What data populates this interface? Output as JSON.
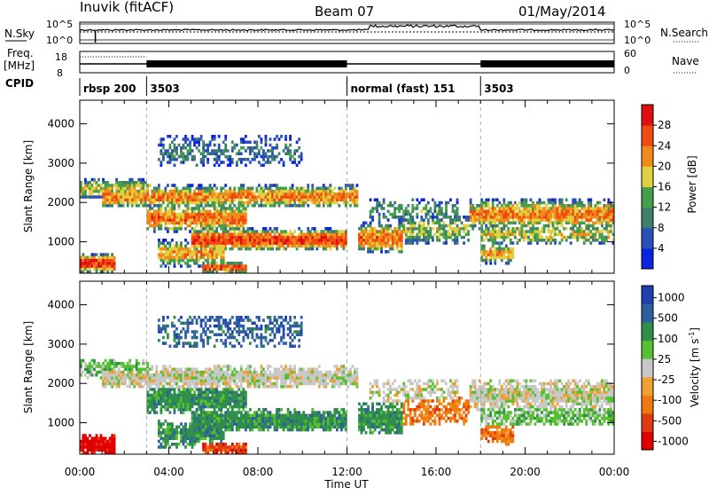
{
  "header": {
    "station": "Inuvik (fitACF)",
    "beam": "Beam 07",
    "date": "01/May/2014"
  },
  "top_panels": {
    "nsky_label": "N.Sky",
    "nsky_ticks": [
      "10^5",
      "10^0"
    ],
    "nsearch_label": "N.Search",
    "nsearch_ticks": [
      "10^5",
      "10^0"
    ],
    "freq_label_1": "Freq.",
    "freq_label_2": "[MHz]",
    "freq_ticks": [
      "18",
      "8"
    ],
    "nave_label": "Nave",
    "nave_ticks": [
      "60",
      "0"
    ],
    "cpid_label": "CPID",
    "cpid_segments": [
      {
        "label": "rbsp 200",
        "start_hr": 0.0,
        "end_hr": 3.0
      },
      {
        "label": "3503",
        "start_hr": 3.0,
        "end_hr": 12.0
      },
      {
        "label": "normal (fast) 151",
        "start_hr": 12.0,
        "end_hr": 18.0
      },
      {
        "label": "3503",
        "start_hr": 18.0,
        "end_hr": 24.0
      }
    ]
  },
  "chart_data": [
    {
      "type": "heatmap",
      "panel": "power",
      "ylabel": "Slant Range [km]",
      "yticks": [
        1000,
        2000,
        3000,
        4000
      ],
      "ylim": [
        200,
        4600
      ],
      "xlim": [
        0,
        24
      ],
      "colorbar": {
        "label": "Power [dB]",
        "ticks": [
          4,
          8,
          12,
          16,
          20,
          24,
          28
        ],
        "colors": [
          "#0a24e0",
          "#2b4fb8",
          "#3f7f6a",
          "#44a04a",
          "#e0d040",
          "#f08a1a",
          "#f04a10",
          "#e01010"
        ]
      }
    },
    {
      "type": "heatmap",
      "panel": "velocity",
      "ylabel": "Slant Range [km]",
      "yticks": [
        1000,
        2000,
        3000,
        4000
      ],
      "ylim": [
        200,
        4600
      ],
      "xlim": [
        0,
        24
      ],
      "xlabel": "Time UT",
      "xtick_labels": [
        "00:00",
        "04:00",
        "08:00",
        "12:00",
        "16:00",
        "20:00",
        "00:00"
      ],
      "colorbar": {
        "label": "Velocity [m s-1]",
        "ticks": [
          "1000",
          "500",
          "100",
          "25",
          "-25",
          "-100",
          "-500",
          "-1000"
        ],
        "colors": [
          "#1f3fb0",
          "#2f5fa0",
          "#2f8f4a",
          "#55c030",
          "#c8c8c8",
          "#f0a030",
          "#f07a10",
          "#e03a10",
          "#e00000"
        ]
      }
    }
  ]
}
